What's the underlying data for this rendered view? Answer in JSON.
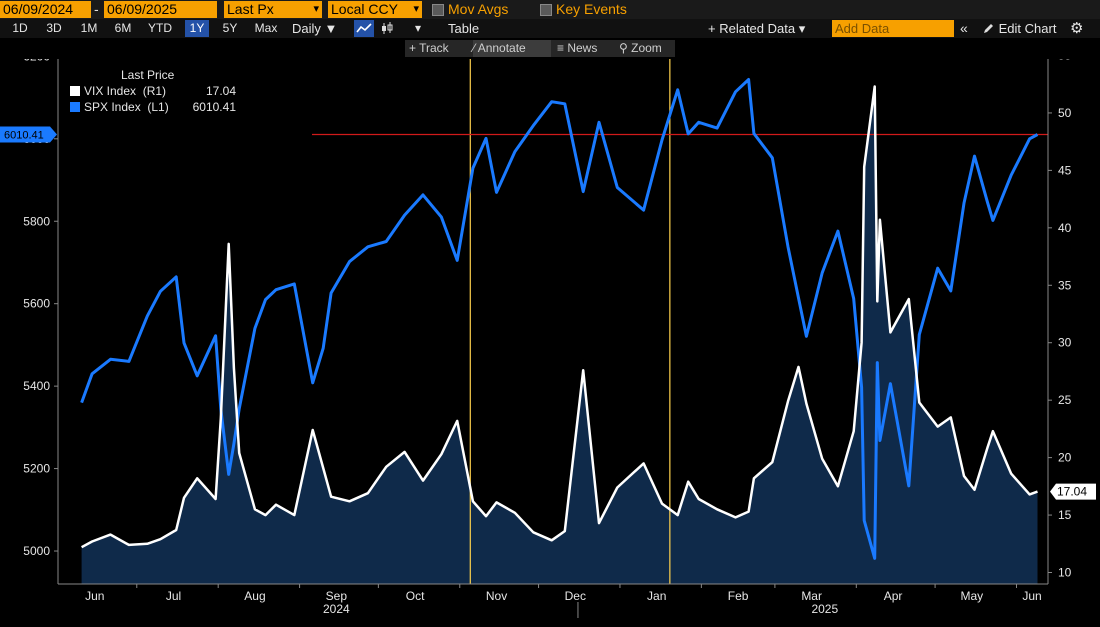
{
  "header": {
    "start_date": "06/09/2024",
    "end_date": "06/09/2025",
    "date_sep": "-",
    "field": "Last Px",
    "currency": "Local CCY",
    "mov_avgs": "Mov Avgs",
    "key_events": "Key Events"
  },
  "toolbar": {
    "ranges": [
      "1D",
      "3D",
      "1M",
      "6M",
      "YTD",
      "1Y",
      "5Y",
      "Max"
    ],
    "active_range": "1Y",
    "period": "Daily ▼",
    "table": "Table",
    "related_data": "+ Related Data ▾",
    "add_data_placeholder": "Add Data",
    "edit_chart": "Edit Chart",
    "tools": [
      "Track",
      "Annotate",
      "News",
      "Zoom"
    ]
  },
  "legend": {
    "title": "Last Price",
    "rows": [
      {
        "name": "VIX Index  (R1)",
        "value": "17.04",
        "color": "#ffffff"
      },
      {
        "name": "SPX Index  (L1)",
        "value": "6010.41",
        "color": "#1a7aff"
      }
    ]
  },
  "badges": {
    "left": "6010.41",
    "right": "17.04"
  },
  "colors": {
    "spx": "#1a7aff",
    "vix": "#ffffff",
    "vix_fill": "#0f2a4a",
    "marker": "#ffd24d",
    "hline": "#d11a1a"
  },
  "chart_data": {
    "type": "line",
    "x_labels": [
      "Jun",
      "Jul",
      "Aug",
      "Sep",
      "Oct",
      "Nov",
      "Dec",
      "Jan",
      "Feb",
      "Mar",
      "Apr",
      "May",
      "Jun"
    ],
    "year_labels": [
      "2024",
      "2025"
    ],
    "y_left": {
      "ticks": [
        5000,
        5200,
        5400,
        5600,
        5800,
        6000,
        6200
      ],
      "range": [
        4920,
        6230
      ]
    },
    "y_right": {
      "ticks": [
        10,
        15,
        20,
        25,
        30,
        35,
        40,
        45,
        50,
        55
      ],
      "range": [
        9,
        56
      ]
    },
    "reference_line": {
      "axis": "left",
      "value": 6010.41
    },
    "vertical_markers": [
      "2024-11-05",
      "2025-01-20"
    ],
    "series": [
      {
        "name": "SPX Index",
        "axis": "left",
        "x": [
          "2024-06-10",
          "2024-06-14",
          "2024-06-21",
          "2024-06-28",
          "2024-07-05",
          "2024-07-10",
          "2024-07-16",
          "2024-07-19",
          "2024-07-24",
          "2024-07-31",
          "2024-08-02",
          "2024-08-05",
          "2024-08-07",
          "2024-08-09",
          "2024-08-15",
          "2024-08-19",
          "2024-08-23",
          "2024-08-30",
          "2024-09-06",
          "2024-09-10",
          "2024-09-13",
          "2024-09-20",
          "2024-09-27",
          "2024-10-04",
          "2024-10-11",
          "2024-10-18",
          "2024-10-25",
          "2024-10-31",
          "2024-11-06",
          "2024-11-11",
          "2024-11-15",
          "2024-11-22",
          "2024-11-29",
          "2024-12-06",
          "2024-12-11",
          "2024-12-18",
          "2024-12-24",
          "2024-12-31",
          "2025-01-10",
          "2025-01-17",
          "2025-01-23",
          "2025-01-27",
          "2025-01-31",
          "2025-02-07",
          "2025-02-14",
          "2025-02-19",
          "2025-02-21",
          "2025-02-28",
          "2025-03-06",
          "2025-03-10",
          "2025-03-13",
          "2025-03-19",
          "2025-03-25",
          "2025-03-31",
          "2025-04-03",
          "2025-04-04",
          "2025-04-08",
          "2025-04-09",
          "2025-04-10",
          "2025-04-14",
          "2025-04-21",
          "2025-04-25",
          "2025-05-02",
          "2025-05-07",
          "2025-05-12",
          "2025-05-16",
          "2025-05-21",
          "2025-05-23",
          "2025-05-30",
          "2025-06-06",
          "2025-06-09"
        ],
        "values": [
          5360,
          5430,
          5465,
          5460,
          5570,
          5630,
          5665,
          5505,
          5425,
          5522,
          5345,
          5186,
          5260,
          5345,
          5540,
          5610,
          5634,
          5648,
          5408,
          5492,
          5626,
          5702,
          5738,
          5751,
          5815,
          5864,
          5810,
          5705,
          5929,
          6001,
          5870,
          5969,
          6032,
          6090,
          6085,
          5872,
          6040,
          5882,
          5827,
          5997,
          6119,
          6012,
          6040,
          6026,
          6114,
          6144,
          6013,
          5954,
          5738,
          5614,
          5521,
          5675,
          5776,
          5612,
          5397,
          5074,
          4982,
          5457,
          5268,
          5406,
          5158,
          5525,
          5686,
          5631,
          5844,
          5958,
          5845,
          5802,
          5912,
          6000,
          6010.41
        ]
      },
      {
        "name": "VIX Index",
        "axis": "right",
        "x": [
          "2024-06-10",
          "2024-06-14",
          "2024-06-21",
          "2024-06-28",
          "2024-07-05",
          "2024-07-10",
          "2024-07-16",
          "2024-07-19",
          "2024-07-24",
          "2024-07-31",
          "2024-08-02",
          "2024-08-05",
          "2024-08-07",
          "2024-08-09",
          "2024-08-15",
          "2024-08-19",
          "2024-08-23",
          "2024-08-30",
          "2024-09-06",
          "2024-09-10",
          "2024-09-13",
          "2024-09-20",
          "2024-09-27",
          "2024-10-04",
          "2024-10-11",
          "2024-10-18",
          "2024-10-25",
          "2024-10-31",
          "2024-11-06",
          "2024-11-11",
          "2024-11-15",
          "2024-11-22",
          "2024-11-29",
          "2024-12-06",
          "2024-12-11",
          "2024-12-18",
          "2024-12-24",
          "2024-12-31",
          "2025-01-10",
          "2025-01-17",
          "2025-01-23",
          "2025-01-27",
          "2025-01-31",
          "2025-02-07",
          "2025-02-14",
          "2025-02-19",
          "2025-02-21",
          "2025-02-28",
          "2025-03-06",
          "2025-03-10",
          "2025-03-13",
          "2025-03-19",
          "2025-03-25",
          "2025-03-31",
          "2025-04-03",
          "2025-04-04",
          "2025-04-08",
          "2025-04-09",
          "2025-04-10",
          "2025-04-14",
          "2025-04-21",
          "2025-04-25",
          "2025-05-02",
          "2025-05-07",
          "2025-05-12",
          "2025-05-16",
          "2025-05-21",
          "2025-05-23",
          "2025-05-30",
          "2025-06-06",
          "2025-06-09"
        ],
        "values": [
          12.2,
          12.7,
          13.3,
          12.4,
          12.5,
          12.9,
          13.7,
          16.5,
          18.2,
          16.4,
          23.4,
          38.6,
          27.8,
          20.4,
          15.5,
          15.0,
          15.9,
          15.0,
          22.4,
          19.1,
          16.6,
          16.2,
          16.9,
          19.2,
          20.5,
          18.0,
          20.3,
          23.2,
          16.2,
          14.9,
          16.1,
          15.2,
          13.5,
          12.8,
          13.6,
          27.6,
          14.3,
          17.4,
          19.5,
          16.0,
          15.0,
          17.9,
          16.4,
          15.5,
          14.8,
          15.3,
          18.2,
          19.6,
          24.9,
          27.9,
          24.7,
          19.9,
          17.5,
          22.3,
          30.0,
          45.3,
          52.3,
          33.6,
          40.7,
          30.9,
          33.8,
          24.8,
          22.7,
          23.5,
          18.4,
          17.2,
          20.9,
          22.3,
          18.6,
          16.8,
          17.04
        ]
      }
    ]
  }
}
